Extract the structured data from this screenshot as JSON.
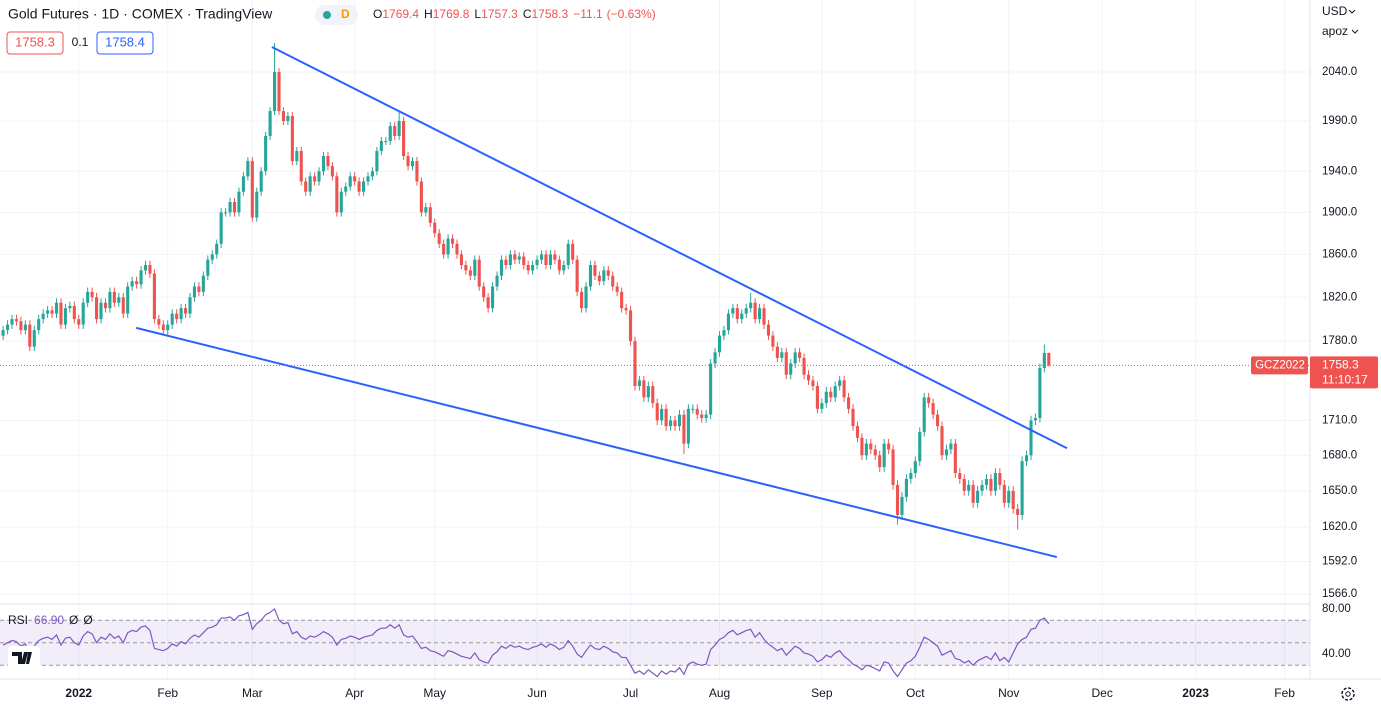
{
  "chart_data": {
    "type": "candlestick",
    "title": "Gold Futures · 1D · COMEX · TradingView",
    "badge": "D",
    "ohlc_legend": [
      {
        "label": "O",
        "value": 1769.4
      },
      {
        "label": "H",
        "value": 1769.8
      },
      {
        "label": "L",
        "value": 1757.3
      },
      {
        "label": "C",
        "value": 1758.3
      }
    ],
    "change": {
      "value": -11.1,
      "label": "−11.1"
    },
    "change_pct": {
      "value": -0.63,
      "label": "(−0.63%)"
    },
    "bid": 1758.3,
    "spread": 0.1,
    "ask": 1758.4,
    "currency": "USD",
    "scale_mode": "apoz",
    "symbol": "GCZ2022",
    "countdown": "11:10:17",
    "up_color": "#26a69a",
    "down_color": "#ef5350",
    "log_scale": true,
    "grid": true,
    "xlim": [
      -0.7,
      293.7
    ],
    "xticks": [
      {
        "value": 17,
        "label": "2022"
      },
      {
        "value": 37,
        "label": "Feb"
      },
      {
        "value": 56,
        "label": "Mar"
      },
      {
        "value": 79,
        "label": "Apr"
      },
      {
        "value": 97,
        "label": "May"
      },
      {
        "value": 120,
        "label": "Jun"
      },
      {
        "value": 141,
        "label": "Jul"
      },
      {
        "value": 161,
        "label": "Aug"
      },
      {
        "value": 184,
        "label": "Sep"
      },
      {
        "value": 205,
        "label": "Oct"
      },
      {
        "value": 226,
        "label": "Nov"
      },
      {
        "value": 247,
        "label": "Dec"
      },
      {
        "value": 268,
        "label": "2023"
      },
      {
        "value": 288,
        "label": "Feb"
      }
    ],
    "ylim": [
      1558.9,
      2115.8
    ],
    "yticks": [
      {
        "value": 2040,
        "label": "2040.0"
      },
      {
        "value": 1990,
        "label": "1990.0"
      },
      {
        "value": 1940,
        "label": "1940.0"
      },
      {
        "value": 1900,
        "label": "1900.0"
      },
      {
        "value": 1860,
        "label": "1860.0"
      },
      {
        "value": 1820,
        "label": "1820.0"
      },
      {
        "value": 1780,
        "label": "1780.0"
      },
      {
        "value": 1710,
        "label": "1710.0"
      },
      {
        "value": 1680,
        "label": "1680.0"
      },
      {
        "value": 1650,
        "label": "1650.0"
      },
      {
        "value": 1620,
        "label": "1620.0"
      },
      {
        "value": 1592,
        "label": "1592.0"
      },
      {
        "value": 1566,
        "label": "1566.0"
      }
    ],
    "open": [
      1785,
      1790,
      1795,
      1800,
      1798,
      1790,
      1795,
      1775,
      1790,
      1800,
      1805,
      1808,
      1805,
      1815,
      1795,
      1810,
      1812,
      1800,
      1795,
      1815,
      1825,
      1820,
      1800,
      1815,
      1810,
      1825,
      1815,
      1820,
      1805,
      1830,
      1835,
      1832,
      1845,
      1850,
      1842,
      1800,
      1795,
      1790,
      1795,
      1805,
      1800,
      1810,
      1805,
      1820,
      1830,
      1825,
      1840,
      1855,
      1860,
      1870,
      1900,
      1900,
      1910,
      1900,
      1920,
      1935,
      1950,
      1895,
      1920,
      1940,
      1975,
      2000,
      2040,
      2000,
      1990,
      1995,
      1950,
      1960,
      1930,
      1920,
      1935,
      1930,
      1940,
      1955,
      1945,
      1935,
      1900,
      1920,
      1925,
      1935,
      1930,
      1920,
      1930,
      1935,
      1940,
      1960,
      1970,
      1970,
      1985,
      1975,
      1990,
      1955,
      1945,
      1950,
      1930,
      1900,
      1905,
      1890,
      1880,
      1870,
      1860,
      1875,
      1870,
      1860,
      1850,
      1845,
      1840,
      1855,
      1830,
      1820,
      1810,
      1830,
      1840,
      1855,
      1850,
      1860,
      1855,
      1858,
      1850,
      1845,
      1850,
      1855,
      1860,
      1850,
      1860,
      1855,
      1845,
      1850,
      1870,
      1855,
      1825,
      1810,
      1830,
      1850,
      1840,
      1835,
      1845,
      1840,
      1830,
      1825,
      1810,
      1808,
      1780,
      1740,
      1745,
      1730,
      1740,
      1725,
      1710,
      1720,
      1705,
      1710,
      1705,
      1715,
      1690,
      1720,
      1720,
      1715,
      1712,
      1715,
      1760,
      1770,
      1785,
      1790,
      1805,
      1810,
      1800,
      1805,
      1810,
      1815,
      1800,
      1810,
      1795,
      1785,
      1775,
      1765,
      1770,
      1750,
      1760,
      1770,
      1765,
      1750,
      1745,
      1740,
      1720,
      1725,
      1735,
      1730,
      1740,
      1745,
      1730,
      1720,
      1705,
      1695,
      1680,
      1690,
      1685,
      1680,
      1670,
      1690,
      1685,
      1655,
      1630,
      1645,
      1660,
      1665,
      1675,
      1700,
      1730,
      1725,
      1715,
      1705,
      1680,
      1685,
      1690,
      1665,
      1660,
      1650,
      1655,
      1640,
      1650,
      1655,
      1660,
      1650,
      1665,
      1655,
      1640,
      1650,
      1635,
      1630,
      1675,
      1680,
      1710,
      1712,
      1756,
      1769.4
    ],
    "high": [
      1794,
      1799,
      1804,
      1804,
      1802,
      1799,
      1799,
      1794,
      1804,
      1809,
      1812,
      1812,
      1819,
      1819,
      1814,
      1816,
      1816,
      1804,
      1819,
      1829,
      1829,
      1824,
      1819,
      1819,
      1829,
      1829,
      1824,
      1824,
      1834,
      1839,
      1839,
      1849,
      1854,
      1854,
      1846,
      1804,
      1799,
      1799,
      1809,
      1809,
      1814,
      1814,
      1824,
      1834,
      1834,
      1844,
      1859,
      1864,
      1874,
      1904,
      1904,
      1914,
      1914,
      1924,
      1939,
      1954,
      1954,
      1924,
      1944,
      1979,
      2004,
      2070,
      2044,
      2004,
      1999,
      1999,
      1964,
      1964,
      1934,
      1939,
      1939,
      1944,
      1959,
      1959,
      1949,
      1939,
      1924,
      1929,
      1939,
      1939,
      1934,
      1934,
      1939,
      1944,
      1964,
      1974,
      1974,
      1989,
      1989,
      2000,
      1994,
      1959,
      1954,
      1954,
      1934,
      1909,
      1909,
      1894,
      1884,
      1874,
      1879,
      1879,
      1874,
      1864,
      1854,
      1849,
      1859,
      1859,
      1834,
      1824,
      1834,
      1844,
      1859,
      1859,
      1864,
      1864,
      1862,
      1862,
      1854,
      1854,
      1859,
      1864,
      1864,
      1864,
      1864,
      1859,
      1854,
      1874,
      1874,
      1859,
      1829,
      1834,
      1854,
      1854,
      1844,
      1849,
      1849,
      1844,
      1834,
      1829,
      1814,
      1812,
      1784,
      1749,
      1749,
      1744,
      1744,
      1729,
      1724,
      1724,
      1714,
      1714,
      1719,
      1719,
      1724,
      1724,
      1724,
      1719,
      1719,
      1764,
      1774,
      1789,
      1794,
      1809,
      1814,
      1814,
      1809,
      1814,
      1824,
      1819,
      1814,
      1814,
      1799,
      1789,
      1779,
      1774,
      1774,
      1764,
      1774,
      1774,
      1769,
      1754,
      1749,
      1744,
      1729,
      1739,
      1739,
      1744,
      1749,
      1749,
      1734,
      1724,
      1709,
      1699,
      1694,
      1694,
      1689,
      1684,
      1694,
      1694,
      1689,
      1659,
      1649,
      1664,
      1669,
      1679,
      1704,
      1734,
      1734,
      1729,
      1719,
      1709,
      1689,
      1694,
      1694,
      1669,
      1664,
      1659,
      1659,
      1654,
      1659,
      1664,
      1664,
      1669,
      1669,
      1659,
      1654,
      1654,
      1639,
      1679,
      1684,
      1714,
      1716,
      1760,
      1777,
      1769.8
    ],
    "low": [
      1781,
      1786,
      1791,
      1794,
      1786,
      1786,
      1771,
      1771,
      1786,
      1796,
      1801,
      1801,
      1801,
      1791,
      1791,
      1806,
      1796,
      1791,
      1791,
      1811,
      1816,
      1796,
      1796,
      1806,
      1806,
      1811,
      1811,
      1801,
      1801,
      1826,
      1828,
      1828,
      1841,
      1838,
      1796,
      1791,
      1786,
      1786,
      1791,
      1796,
      1796,
      1801,
      1801,
      1816,
      1821,
      1821,
      1836,
      1851,
      1856,
      1866,
      1896,
      1896,
      1896,
      1896,
      1916,
      1931,
      1891,
      1891,
      1916,
      1936,
      1971,
      1996,
      1996,
      1986,
      1986,
      1946,
      1946,
      1926,
      1916,
      1916,
      1926,
      1926,
      1936,
      1941,
      1931,
      1896,
      1896,
      1916,
      1921,
      1926,
      1916,
      1916,
      1926,
      1931,
      1936,
      1956,
      1966,
      1966,
      1971,
      1971,
      1951,
      1941,
      1941,
      1926,
      1896,
      1896,
      1886,
      1876,
      1866,
      1856,
      1856,
      1866,
      1856,
      1846,
      1841,
      1836,
      1836,
      1826,
      1816,
      1806,
      1806,
      1826,
      1836,
      1846,
      1846,
      1851,
      1851,
      1846,
      1841,
      1841,
      1846,
      1851,
      1846,
      1846,
      1851,
      1841,
      1841,
      1846,
      1851,
      1821,
      1806,
      1806,
      1826,
      1836,
      1831,
      1831,
      1836,
      1826,
      1821,
      1806,
      1804,
      1776,
      1736,
      1736,
      1726,
      1726,
      1721,
      1706,
      1706,
      1701,
      1701,
      1701,
      1701,
      1681,
      1686,
      1716,
      1711,
      1708,
      1708,
      1711,
      1756,
      1766,
      1781,
      1786,
      1801,
      1796,
      1796,
      1801,
      1806,
      1796,
      1796,
      1791,
      1781,
      1771,
      1761,
      1761,
      1746,
      1746,
      1756,
      1761,
      1746,
      1741,
      1736,
      1716,
      1716,
      1721,
      1726,
      1726,
      1736,
      1726,
      1716,
      1701,
      1691,
      1676,
      1676,
      1681,
      1676,
      1666,
      1666,
      1681,
      1651,
      1622,
      1626,
      1641,
      1656,
      1661,
      1671,
      1696,
      1721,
      1711,
      1701,
      1676,
      1676,
      1681,
      1661,
      1656,
      1646,
      1646,
      1636,
      1636,
      1646,
      1651,
      1646,
      1646,
      1651,
      1636,
      1636,
      1631,
      1618,
      1626,
      1671,
      1676,
      1706,
      1708,
      1752,
      1757.3
    ],
    "close": [
      1790,
      1795,
      1800,
      1798,
      1790,
      1795,
      1775,
      1790,
      1800,
      1805,
      1808,
      1805,
      1815,
      1795,
      1810,
      1812,
      1800,
      1795,
      1815,
      1825,
      1820,
      1800,
      1815,
      1810,
      1825,
      1815,
      1820,
      1805,
      1830,
      1835,
      1832,
      1845,
      1850,
      1842,
      1800,
      1795,
      1790,
      1795,
      1805,
      1800,
      1810,
      1805,
      1820,
      1830,
      1825,
      1840,
      1855,
      1860,
      1870,
      1900,
      1900,
      1910,
      1900,
      1920,
      1935,
      1950,
      1895,
      1920,
      1940,
      1975,
      2000,
      2040,
      2000,
      1990,
      1995,
      1950,
      1960,
      1930,
      1920,
      1935,
      1930,
      1940,
      1955,
      1945,
      1935,
      1900,
      1920,
      1925,
      1935,
      1930,
      1920,
      1930,
      1935,
      1940,
      1960,
      1970,
      1970,
      1985,
      1975,
      1990,
      1955,
      1945,
      1950,
      1930,
      1900,
      1905,
      1890,
      1880,
      1870,
      1860,
      1875,
      1870,
      1860,
      1850,
      1845,
      1840,
      1855,
      1830,
      1820,
      1810,
      1830,
      1840,
      1855,
      1850,
      1860,
      1855,
      1858,
      1850,
      1845,
      1850,
      1855,
      1860,
      1850,
      1860,
      1855,
      1845,
      1850,
      1870,
      1855,
      1825,
      1810,
      1830,
      1850,
      1840,
      1835,
      1845,
      1840,
      1830,
      1825,
      1810,
      1808,
      1780,
      1740,
      1745,
      1730,
      1740,
      1725,
      1710,
      1720,
      1705,
      1710,
      1705,
      1715,
      1690,
      1720,
      1720,
      1715,
      1712,
      1715,
      1760,
      1770,
      1785,
      1790,
      1805,
      1810,
      1800,
      1805,
      1810,
      1815,
      1800,
      1810,
      1795,
      1785,
      1775,
      1765,
      1770,
      1750,
      1760,
      1770,
      1765,
      1750,
      1745,
      1740,
      1720,
      1725,
      1735,
      1730,
      1740,
      1745,
      1730,
      1720,
      1705,
      1695,
      1680,
      1690,
      1685,
      1680,
      1670,
      1690,
      1685,
      1655,
      1630,
      1645,
      1660,
      1665,
      1675,
      1700,
      1730,
      1725,
      1715,
      1705,
      1680,
      1685,
      1690,
      1665,
      1660,
      1650,
      1655,
      1640,
      1650,
      1655,
      1660,
      1650,
      1665,
      1655,
      1640,
      1650,
      1635,
      1630,
      1675,
      1680,
      1710,
      1712,
      1756,
      1769.4,
      1758.3
    ],
    "trendlines": [
      {
        "x": [
          60.4,
          239.1
        ],
        "y": [
          2066,
          1686
        ],
        "color": "#2962ff"
      },
      {
        "x": [
          29.9,
          236.8
        ],
        "y": [
          1792,
          1595.6
        ],
        "color": "#2962ff"
      }
    ],
    "rsi": {
      "title": "RSI",
      "current": {
        "value": 66.9,
        "label": "66.90"
      },
      "extras": [
        "Ø",
        "Ø"
      ],
      "color": "#7e57c2",
      "band_color": "#7e57c2",
      "ylim": [
        18.7,
        83.6
      ],
      "yticks": [
        {
          "value": 80,
          "label": "80.00"
        },
        {
          "value": 40,
          "label": "40.00"
        }
      ],
      "levels": [
        70,
        50,
        30
      ],
      "values": [
        48,
        50,
        52,
        51,
        47,
        49,
        40,
        47,
        52,
        54,
        55,
        53,
        57,
        48,
        54,
        55,
        50,
        48,
        56,
        60,
        58,
        50,
        55,
        53,
        58,
        54,
        56,
        50,
        59,
        61,
        60,
        64,
        65,
        61,
        45,
        44,
        43,
        45,
        49,
        47,
        51,
        49,
        54,
        57,
        55,
        59,
        63,
        64,
        66,
        72,
        72,
        73,
        70,
        74,
        75,
        77,
        62,
        67,
        70,
        75,
        77,
        80,
        70,
        67,
        68,
        58,
        60,
        55,
        53,
        56,
        55,
        57,
        60,
        58,
        55,
        48,
        53,
        54,
        56,
        55,
        53,
        55,
        56,
        57,
        61,
        63,
        63,
        66,
        63,
        66,
        57,
        55,
        56,
        51,
        45,
        46,
        43,
        42,
        40,
        38,
        43,
        42,
        40,
        38,
        37,
        36,
        41,
        35,
        33,
        32,
        39,
        42,
        47,
        45,
        48,
        46,
        47,
        45,
        44,
        46,
        47,
        49,
        46,
        49,
        47,
        44,
        46,
        52,
        47,
        40,
        37,
        43,
        48,
        45,
        44,
        47,
        45,
        42,
        41,
        37,
        37,
        30,
        23,
        25,
        22,
        26,
        23,
        20,
        25,
        22,
        25,
        24,
        28,
        22,
        31,
        33,
        31,
        30,
        31,
        44,
        48,
        53,
        55,
        59,
        61,
        57,
        59,
        61,
        62,
        55,
        59,
        53,
        49,
        46,
        43,
        45,
        39,
        43,
        47,
        45,
        41,
        40,
        38,
        33,
        35,
        39,
        37,
        41,
        43,
        38,
        35,
        31,
        29,
        26,
        30,
        29,
        27,
        25,
        33,
        32,
        25,
        20,
        26,
        32,
        34,
        38,
        46,
        55,
        53,
        50,
        47,
        39,
        41,
        43,
        36,
        35,
        32,
        34,
        30,
        34,
        36,
        38,
        35,
        41,
        34,
        37,
        33,
        41,
        49,
        53,
        55,
        62,
        63,
        70,
        72,
        66.9
      ]
    }
  }
}
